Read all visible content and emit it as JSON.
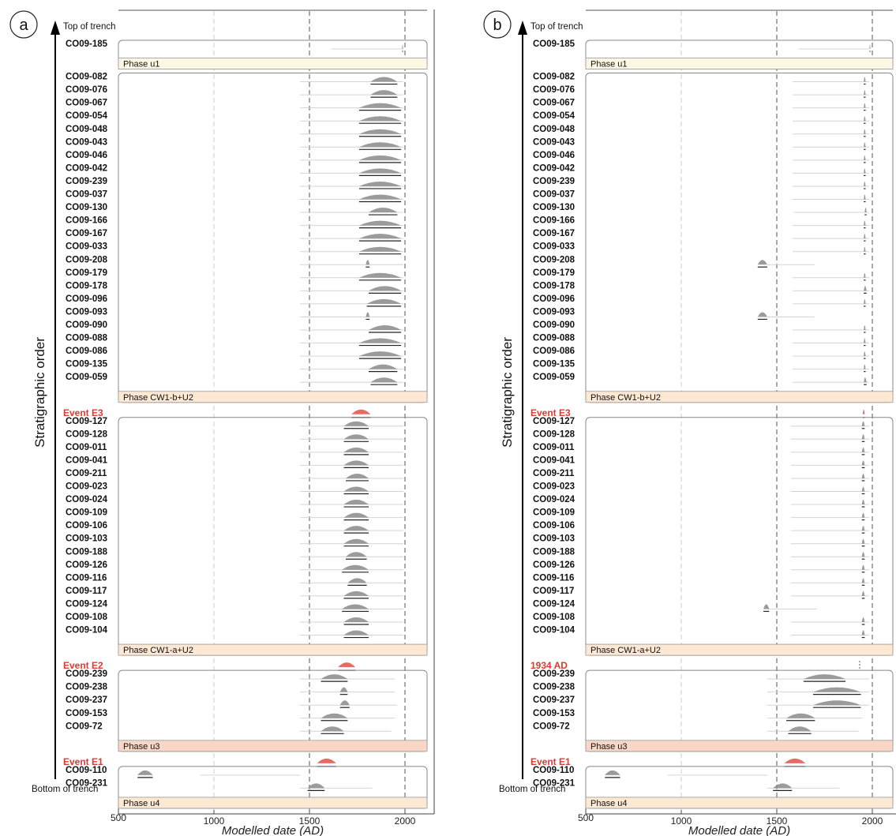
{
  "figure": {
    "top_label": "Top of trench",
    "bottom_label": "Bottom of trench",
    "y_title": "Stratigraphic order"
  },
  "colors": {
    "phase_yellow": "#fdf8e4",
    "phase_orange": "#fde8d4",
    "phase_salmon": "#f9d7c6",
    "event_red": "#e03a2f",
    "posterior_fill": "#8a8a8a",
    "prior_fill": "#e4e4e4"
  },
  "chart_data": [
    {
      "type": "range plot",
      "panel": "a",
      "xlabel": "Modelled date (AD)",
      "xlim": [
        500,
        2040
      ],
      "xticks": [
        "500",
        "1000",
        "1500",
        "2000"
      ],
      "groups": [
        {
          "rows": [
            {
              "label": "CO09-185",
              "range": [
                1985,
                1990
              ]
            }
          ],
          "phase": {
            "label": "Phase u1",
            "color": "#fdf8e4"
          }
        },
        {
          "rows": [
            {
              "label": "CO09-082",
              "range": [
                1820,
                1960
              ]
            },
            {
              "label": "CO09-076",
              "range": [
                1820,
                1960
              ]
            },
            {
              "label": "CO09-067",
              "range": [
                1760,
                1980
              ]
            },
            {
              "label": "CO09-054",
              "range": [
                1760,
                1980
              ]
            },
            {
              "label": "CO09-048",
              "range": [
                1760,
                1980
              ]
            },
            {
              "label": "CO09-043",
              "range": [
                1760,
                1980
              ]
            },
            {
              "label": "CO09-046",
              "range": [
                1760,
                1980
              ]
            },
            {
              "label": "CO09-042",
              "range": [
                1760,
                1980
              ]
            },
            {
              "label": "CO09-239",
              "range": [
                1760,
                1980
              ]
            },
            {
              "label": "CO09-037",
              "range": [
                1760,
                1980
              ]
            },
            {
              "label": "CO09-130",
              "range": [
                1810,
                1960
              ]
            },
            {
              "label": "CO09-166",
              "range": [
                1760,
                1980
              ]
            },
            {
              "label": "CO09-167",
              "range": [
                1760,
                1980
              ]
            },
            {
              "label": "CO09-033",
              "range": [
                1760,
                1980
              ]
            },
            {
              "label": "CO09-208",
              "range": [
                1795,
                1815
              ]
            },
            {
              "label": "CO09-179",
              "range": [
                1760,
                1980
              ]
            },
            {
              "label": "CO09-178",
              "range": [
                1810,
                1980
              ]
            },
            {
              "label": "CO09-096",
              "range": [
                1800,
                1980
              ]
            },
            {
              "label": "CO09-093",
              "range": [
                1795,
                1815
              ]
            },
            {
              "label": "CO09-090",
              "range": [
                1810,
                1980
              ]
            },
            {
              "label": "CO09-088",
              "range": [
                1760,
                1980
              ]
            },
            {
              "label": "CO09-086",
              "range": [
                1760,
                1980
              ]
            },
            {
              "label": "CO09-135",
              "range": [
                1810,
                1960
              ]
            },
            {
              "label": "CO09-059",
              "range": [
                1820,
                1960
              ]
            }
          ],
          "phase": {
            "label": "Phase CW1-b+U2",
            "color": "#fde8d4"
          }
        },
        {
          "event": {
            "label": "Event E3",
            "range": [
              1720,
              1820
            ]
          }
        },
        {
          "rows": [
            {
              "label": "CO09-127",
              "range": [
                1680,
                1810
              ]
            },
            {
              "label": "CO09-128",
              "range": [
                1680,
                1810
              ]
            },
            {
              "label": "CO09-011",
              "range": [
                1680,
                1810
              ]
            },
            {
              "label": "CO09-041",
              "range": [
                1680,
                1810
              ]
            },
            {
              "label": "CO09-211",
              "range": [
                1690,
                1810
              ]
            },
            {
              "label": "CO09-023",
              "range": [
                1680,
                1810
              ]
            },
            {
              "label": "CO09-024",
              "range": [
                1680,
                1810
              ]
            },
            {
              "label": "CO09-109",
              "range": [
                1680,
                1810
              ]
            },
            {
              "label": "CO09-106",
              "range": [
                1680,
                1810
              ]
            },
            {
              "label": "CO09-103",
              "range": [
                1680,
                1810
              ]
            },
            {
              "label": "CO09-188",
              "range": [
                1690,
                1800
              ]
            },
            {
              "label": "CO09-126",
              "range": [
                1670,
                1810
              ]
            },
            {
              "label": "CO09-116",
              "range": [
                1700,
                1800
              ]
            },
            {
              "label": "CO09-117",
              "range": [
                1680,
                1810
              ]
            },
            {
              "label": "CO09-124",
              "range": [
                1670,
                1810
              ]
            },
            {
              "label": "CO09-108",
              "range": [
                1680,
                1810
              ]
            },
            {
              "label": "CO09-104",
              "range": [
                1680,
                1810
              ]
            }
          ],
          "phase": {
            "label": "Phase CW1-a+U2",
            "color": "#fde8d4"
          }
        },
        {
          "event": {
            "label": "Event E2",
            "range": [
              1650,
              1740
            ]
          }
        },
        {
          "rows": [
            {
              "label": "CO09-239",
              "range": [
                1560,
                1700
              ]
            },
            {
              "label": "CO09-238",
              "range": [
                1660,
                1700
              ]
            },
            {
              "label": "CO09-237",
              "range": [
                1660,
                1710
              ]
            },
            {
              "label": "CO09-153",
              "range": [
                1560,
                1700
              ]
            },
            {
              "label": "CO09-72",
              "range": [
                1560,
                1680
              ]
            }
          ],
          "phase": {
            "label": "Phase u3",
            "color": "#f9d7c6"
          }
        },
        {
          "event": {
            "label": "Event E1",
            "range": [
              1540,
              1640
            ]
          }
        },
        {
          "rows": [
            {
              "label": "CO09-110",
              "range": [
                600,
                680
              ]
            },
            {
              "label": "CO09-231",
              "range": [
                1490,
                1580
              ]
            }
          ],
          "phase": {
            "label": "Phase u4",
            "color": "#fde8d4"
          }
        }
      ]
    },
    {
      "type": "range plot",
      "panel": "b",
      "xlabel": "Modelled date (AD)",
      "xlim": [
        500,
        2040
      ],
      "xticks": [
        "500",
        "1000",
        "1500",
        "2000"
      ],
      "groups": [
        {
          "rows": [
            {
              "label": "CO09-185",
              "range": [
                1985,
                1990
              ]
            }
          ],
          "phase": {
            "label": "Phase u1",
            "color": "#fdf8e4"
          }
        },
        {
          "rows": [
            {
              "label": "CO09-082",
              "range": [
                1955,
                1965
              ]
            },
            {
              "label": "CO09-076",
              "range": [
                1955,
                1965
              ]
            },
            {
              "label": "CO09-067",
              "range": [
                1955,
                1965
              ]
            },
            {
              "label": "CO09-054",
              "range": [
                1955,
                1965
              ]
            },
            {
              "label": "CO09-048",
              "range": [
                1955,
                1965
              ]
            },
            {
              "label": "CO09-043",
              "range": [
                1955,
                1965
              ]
            },
            {
              "label": "CO09-046",
              "range": [
                1955,
                1965
              ]
            },
            {
              "label": "CO09-042",
              "range": [
                1955,
                1965
              ]
            },
            {
              "label": "CO09-239",
              "range": [
                1955,
                1965
              ]
            },
            {
              "label": "CO09-037",
              "range": [
                1955,
                1965
              ]
            },
            {
              "label": "CO09-130",
              "range": [
                1960,
                1970
              ]
            },
            {
              "label": "CO09-166",
              "range": [
                1955,
                1965
              ]
            },
            {
              "label": "CO09-167",
              "range": [
                1955,
                1965
              ]
            },
            {
              "label": "CO09-033",
              "range": [
                1955,
                1965
              ]
            },
            {
              "label": "CO09-208",
              "range": [
                1400,
                1450
              ]
            },
            {
              "label": "CO09-179",
              "range": [
                1955,
                1965
              ]
            },
            {
              "label": "CO09-178",
              "range": [
                1955,
                1970
              ]
            },
            {
              "label": "CO09-096",
              "range": [
                1955,
                1965
              ]
            },
            {
              "label": "CO09-093",
              "range": [
                1400,
                1450
              ]
            },
            {
              "label": "CO09-090",
              "range": [
                1955,
                1965
              ]
            },
            {
              "label": "CO09-088",
              "range": [
                1955,
                1965
              ]
            },
            {
              "label": "CO09-086",
              "range": [
                1955,
                1965
              ]
            },
            {
              "label": "CO09-135",
              "range": [
                1955,
                1965
              ]
            },
            {
              "label": "CO09-059",
              "range": [
                1955,
                1970
              ]
            }
          ],
          "phase": {
            "label": "Phase CW1-b+U2",
            "color": "#fde8d4"
          }
        },
        {
          "event": {
            "label": "Event E3",
            "range": [
              1950,
              1960
            ]
          }
        },
        {
          "rows": [
            {
              "label": "CO09-127",
              "range": [
                1945,
                1960
              ]
            },
            {
              "label": "CO09-128",
              "range": [
                1945,
                1960
              ]
            },
            {
              "label": "CO09-011",
              "range": [
                1945,
                1960
              ]
            },
            {
              "label": "CO09-041",
              "range": [
                1945,
                1960
              ]
            },
            {
              "label": "CO09-211",
              "range": [
                1945,
                1960
              ]
            },
            {
              "label": "CO09-023",
              "range": [
                1945,
                1960
              ]
            },
            {
              "label": "CO09-024",
              "range": [
                1945,
                1960
              ]
            },
            {
              "label": "CO09-109",
              "range": [
                1945,
                1960
              ]
            },
            {
              "label": "CO09-106",
              "range": [
                1945,
                1960
              ]
            },
            {
              "label": "CO09-103",
              "range": [
                1945,
                1960
              ]
            },
            {
              "label": "CO09-188",
              "range": [
                1945,
                1960
              ]
            },
            {
              "label": "CO09-126",
              "range": [
                1945,
                1960
              ]
            },
            {
              "label": "CO09-116",
              "range": [
                1945,
                1960
              ]
            },
            {
              "label": "CO09-117",
              "range": [
                1945,
                1960
              ]
            },
            {
              "label": "CO09-124",
              "range": [
                1430,
                1460
              ]
            },
            {
              "label": "CO09-108",
              "range": [
                1945,
                1960
              ]
            },
            {
              "label": "CO09-104",
              "range": [
                1945,
                1960
              ]
            }
          ],
          "phase": {
            "label": "Phase CW1-a+U2",
            "color": "#fde8d4"
          }
        },
        {
          "event": {
            "label": "1934 AD",
            "range": [
              1934,
              1934
            ]
          }
        },
        {
          "rows": [
            {
              "label": "CO09-239",
              "range": [
                1640,
                1860
              ]
            },
            {
              "label": "CO09-238",
              "range": [
                1690,
                1940
              ]
            },
            {
              "label": "CO09-237",
              "range": [
                1690,
                1940
              ]
            },
            {
              "label": "CO09-153",
              "range": [
                1550,
                1700
              ]
            },
            {
              "label": "CO09-72",
              "range": [
                1560,
                1680
              ]
            }
          ],
          "phase": {
            "label": "Phase u3",
            "color": "#f9d7c6"
          }
        },
        {
          "event": {
            "label": "Event E1",
            "range": [
              1540,
              1650
            ]
          }
        },
        {
          "rows": [
            {
              "label": "CO09-110",
              "range": [
                600,
                680
              ]
            },
            {
              "label": "CO09-231",
              "range": [
                1480,
                1580
              ]
            }
          ],
          "phase": {
            "label": "Phase u4",
            "color": "#fde8d4"
          }
        }
      ]
    }
  ]
}
